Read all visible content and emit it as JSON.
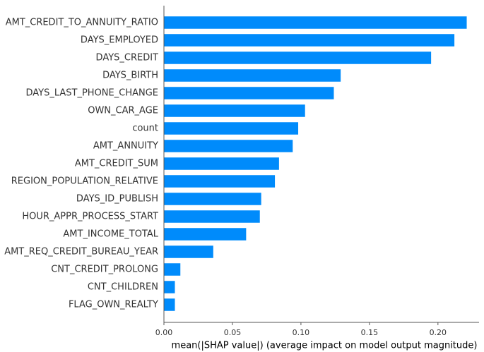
{
  "chart_data": {
    "type": "bar",
    "orientation": "horizontal",
    "categories": [
      "AMT_CREDIT_TO_ANNUITY_RATIO",
      "DAYS_EMPLOYED",
      "DAYS_CREDIT",
      "DAYS_BIRTH",
      "DAYS_LAST_PHONE_CHANGE",
      "OWN_CAR_AGE",
      "count",
      "AMT_ANNUITY",
      "AMT_CREDIT_SUM",
      "REGION_POPULATION_RELATIVE",
      "DAYS_ID_PUBLISH",
      "HOUR_APPR_PROCESS_START",
      "AMT_INCOME_TOTAL",
      "AMT_REQ_CREDIT_BUREAU_YEAR",
      "CNT_CREDIT_PROLONG",
      "CNT_CHILDREN",
      "FLAG_OWN_REALTY"
    ],
    "values": [
      0.221,
      0.212,
      0.195,
      0.129,
      0.124,
      0.103,
      0.098,
      0.094,
      0.084,
      0.081,
      0.071,
      0.07,
      0.06,
      0.036,
      0.012,
      0.008,
      0.008
    ],
    "xlabel": "mean(|SHAP value|) (average impact on model output magnitude)",
    "xlim": [
      0,
      0.23
    ],
    "xticks": [
      "0.00",
      "0.05",
      "0.10",
      "0.15",
      "0.20"
    ],
    "bar_color": "#008bfb",
    "grid": false
  }
}
